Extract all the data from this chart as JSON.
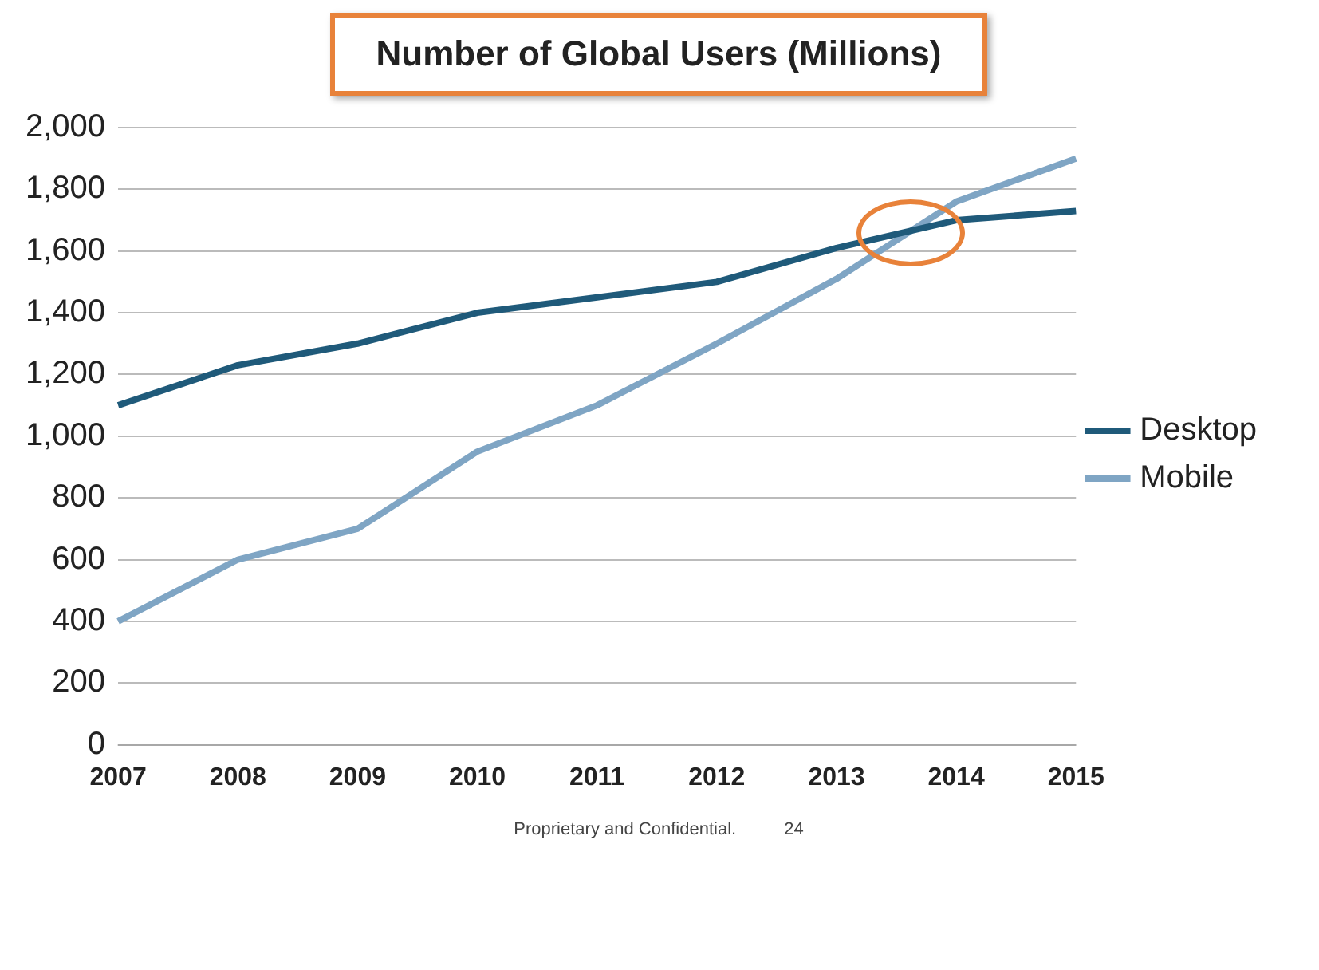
{
  "chart_data": {
    "type": "line",
    "title": "Number of Global Users (Millions)",
    "categories": [
      "2007",
      "2008",
      "2009",
      "2010",
      "2011",
      "2012",
      "2013",
      "2014",
      "2015"
    ],
    "series": [
      {
        "name": "Desktop",
        "color": "#1f5a7a",
        "values": [
          1100,
          1230,
          1300,
          1400,
          1450,
          1500,
          1610,
          1700,
          1730
        ]
      },
      {
        "name": "Mobile",
        "color": "#7fa5c4",
        "values": [
          400,
          600,
          700,
          950,
          1100,
          1300,
          1510,
          1760,
          1900
        ]
      }
    ],
    "ylim": [
      0,
      2000
    ],
    "yticks": [
      0,
      200,
      400,
      600,
      800,
      {
        "value": 1000,
        "label": "1,000"
      },
      {
        "value": 1200,
        "label": "1,200"
      },
      {
        "value": 1400,
        "label": "1,400"
      },
      {
        "value": 1600,
        "label": "1,600"
      },
      {
        "value": 1800,
        "label": "1,800"
      },
      {
        "value": 2000,
        "label": "2,000"
      }
    ],
    "grid": "y",
    "legend": "right",
    "marker": "none",
    "line_style": "solid",
    "annotations": [
      "Proprietary and Confidential.",
      "24"
    ]
  }
}
